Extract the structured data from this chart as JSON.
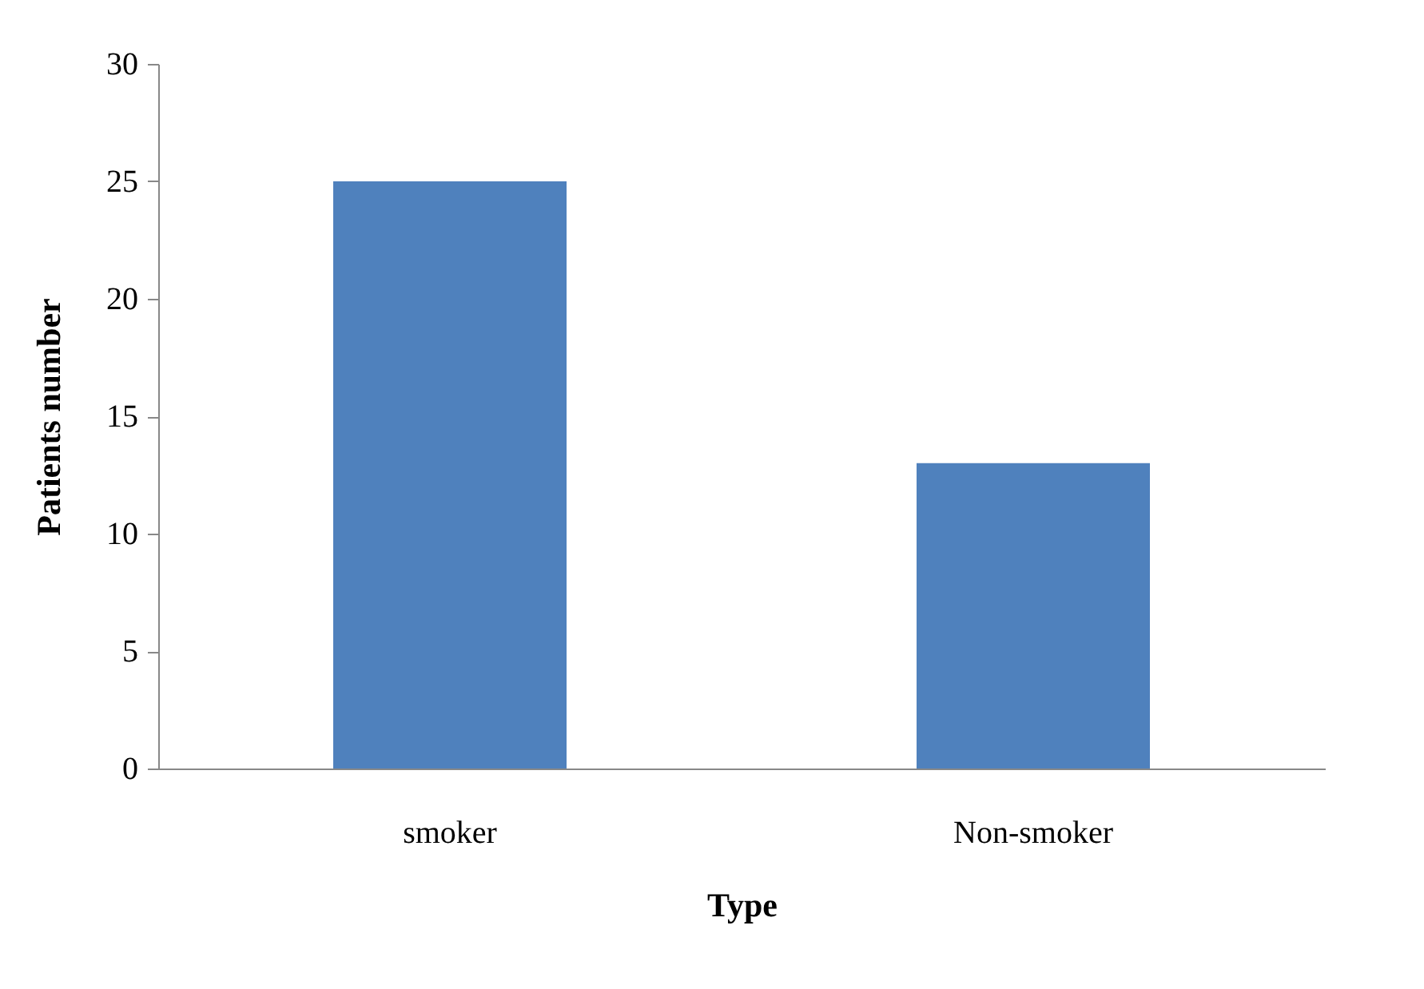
{
  "chart_data": {
    "type": "bar",
    "xlabel": "Type",
    "ylabel": "Patients number",
    "categories": [
      "smoker",
      "Non-smoker"
    ],
    "values": [
      25,
      13
    ],
    "color": "#4f81bd",
    "ylim": [
      0,
      30
    ],
    "yticks": [
      0,
      5,
      10,
      15,
      20,
      25,
      30
    ],
    "grid": false
  }
}
